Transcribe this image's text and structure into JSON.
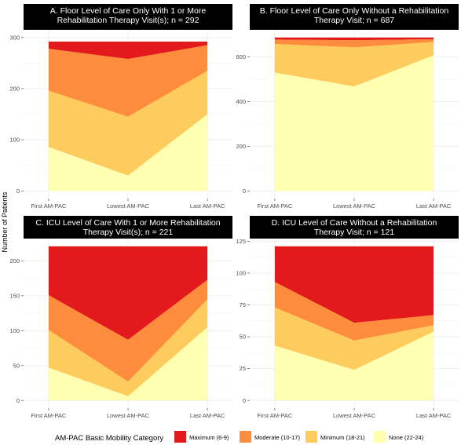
{
  "chart_data": {
    "type": "area",
    "ylabel": "Number of Patients",
    "categories": [
      "First AM-PAC",
      "Lowest AM-PAC",
      "Last AM-PAC"
    ],
    "legend": {
      "title": "AM-PAC Basic Mobility Category",
      "position": "bottom",
      "items": [
        {
          "key": "maximum",
          "label": "Maximum (6-9)",
          "color": "#e31a1c"
        },
        {
          "key": "moderate",
          "label": "Moderate (10-17)",
          "color": "#fd8d3c"
        },
        {
          "key": "minimum",
          "label": "Minimum (18-21)",
          "color": "#fecc5c"
        },
        {
          "key": "none",
          "label": "None (22-24)",
          "color": "#ffffb2"
        }
      ]
    },
    "grid": true,
    "panels": [
      {
        "title": "A. Floor Level of Care Only With 1 or More Rehabilitation Therapy Visit(s); n = 292",
        "title_lines": [
          "A. Floor Level of Care Only With 1 or More",
          "Rehabilitation Therapy Visit(s); n = 292"
        ],
        "ylim": [
          0,
          300
        ],
        "yticks": [
          0,
          100,
          200,
          300
        ],
        "series": [
          {
            "key": "none",
            "values": [
              86,
              30,
              150
            ]
          },
          {
            "key": "minimum",
            "values": [
              110,
              115,
              85
            ]
          },
          {
            "key": "moderate",
            "values": [
              82,
              113,
              50
            ]
          },
          {
            "key": "maximum",
            "values": [
              14,
              34,
              7
            ]
          }
        ]
      },
      {
        "title": "B. Floor Level of Care Only Without a Rehabilitation Therapy Visit; n = 687",
        "title_lines": [
          "B. Floor Level of Care Only Without a Rehabilitation",
          "Therapy Visit; n = 687"
        ],
        "ylim": [
          0,
          687
        ],
        "yticks": [
          0,
          200,
          400,
          600
        ],
        "series": [
          {
            "key": "none",
            "values": [
              530,
              468,
              607
            ]
          },
          {
            "key": "minimum",
            "values": [
              128,
              175,
              60
            ]
          },
          {
            "key": "moderate",
            "values": [
              20,
              32,
              12
            ]
          },
          {
            "key": "maximum",
            "values": [
              9,
              12,
              8
            ]
          }
        ]
      },
      {
        "title": "C. ICU Level of Care With 1 or More Rehabilitation Therapy Visit(s); n = 221",
        "title_lines": [
          "C. ICU Level of Care With 1 or More Rehabilitation",
          "Therapy Visit(s); n = 221"
        ],
        "ylim": [
          0,
          221
        ],
        "yticks": [
          0,
          50,
          100,
          150,
          200
        ],
        "series": [
          {
            "key": "none",
            "values": [
              47,
              6,
              105
            ]
          },
          {
            "key": "minimum",
            "values": [
              54,
              21,
              40
            ]
          },
          {
            "key": "moderate",
            "values": [
              50,
              60,
              28
            ]
          },
          {
            "key": "maximum",
            "values": [
              70,
              134,
              48
            ]
          }
        ]
      },
      {
        "title": "D. ICU Level of Care Without a Rehabilitation Therapy Visit; n = 121",
        "title_lines": [
          "D. ICU Level of Care Without a Rehabilitation",
          "Therapy Visit; n = 121"
        ],
        "ylim": [
          0,
          121
        ],
        "yticks": [
          0,
          25,
          50,
          75,
          100,
          125
        ],
        "series": [
          {
            "key": "none",
            "values": [
              43,
              24,
              54
            ]
          },
          {
            "key": "minimum",
            "values": [
              30,
              23,
              5
            ]
          },
          {
            "key": "moderate",
            "values": [
              20,
              14,
              8
            ]
          },
          {
            "key": "maximum",
            "values": [
              28,
              60,
              54
            ]
          }
        ]
      }
    ]
  }
}
